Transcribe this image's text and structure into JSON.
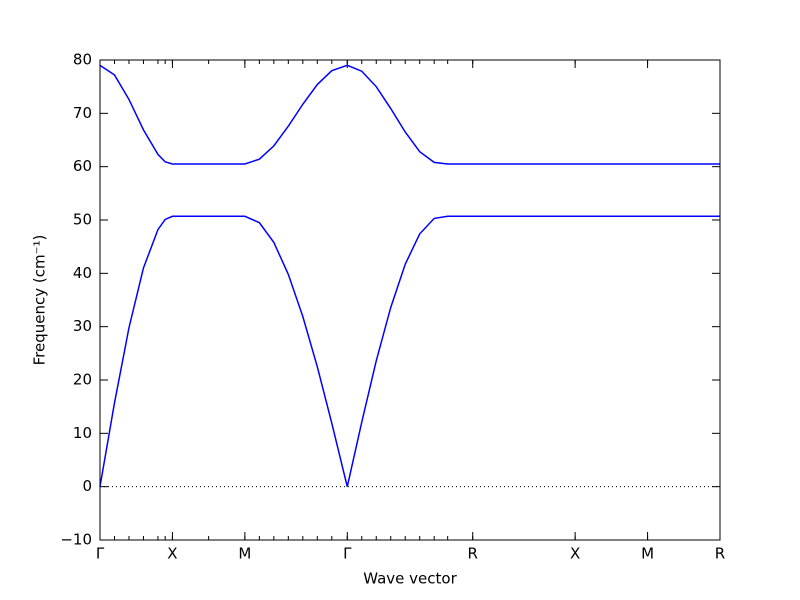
{
  "chart_data": {
    "type": "line",
    "xlabel": "Wave vector",
    "ylabel": "Frequency (cm⁻¹)",
    "x": [
      0,
      0.2,
      0.4,
      0.6,
      0.8,
      0.9,
      1.0,
      1.5,
      2.0,
      2.2,
      2.4,
      2.6,
      2.8,
      3.0,
      3.2,
      3.414,
      3.614,
      3.814,
      4.014,
      4.214,
      4.414,
      4.614,
      4.8,
      5.146,
      6.56,
      7.56,
      8.56
    ],
    "series": [
      {
        "color": "#0000ff",
        "values": [
          0,
          15.7,
          29.8,
          41.0,
          48.2,
          50.1,
          50.7,
          50.7,
          50.7,
          49.5,
          45.8,
          39.8,
          31.9,
          22.5,
          11.9,
          0,
          12.1,
          23.6,
          33.6,
          41.7,
          47.4,
          50.3,
          50.7,
          50.7,
          50.7,
          50.7,
          50.7
        ]
      },
      {
        "color": "#0000ff",
        "values": [
          79.0,
          77.2,
          72.6,
          66.9,
          62.3,
          60.9,
          60.5,
          60.5,
          60.5,
          61.4,
          63.9,
          67.6,
          71.7,
          75.4,
          78.0,
          79.0,
          77.9,
          75.0,
          70.9,
          66.5,
          62.8,
          60.8,
          60.5,
          60.5,
          60.5,
          60.5,
          60.5
        ]
      }
    ],
    "xlim": [
      0,
      8.56
    ],
    "xticks": [
      {
        "value": 0,
        "label": "Γ"
      },
      {
        "value": 1.0,
        "label": "X"
      },
      {
        "value": 2.0,
        "label": "M"
      },
      {
        "value": 3.414,
        "label": "Γ"
      },
      {
        "value": 5.146,
        "label": "R"
      },
      {
        "value": 6.56,
        "label": "X"
      },
      {
        "value": 7.56,
        "label": "M"
      },
      {
        "value": 8.56,
        "label": "R"
      }
    ],
    "ylim": [
      -10,
      80
    ],
    "yticks": [
      {
        "value": -10,
        "label": "−10"
      },
      0,
      10,
      20,
      30,
      40,
      50,
      60,
      70,
      80
    ],
    "hline": 0
  }
}
